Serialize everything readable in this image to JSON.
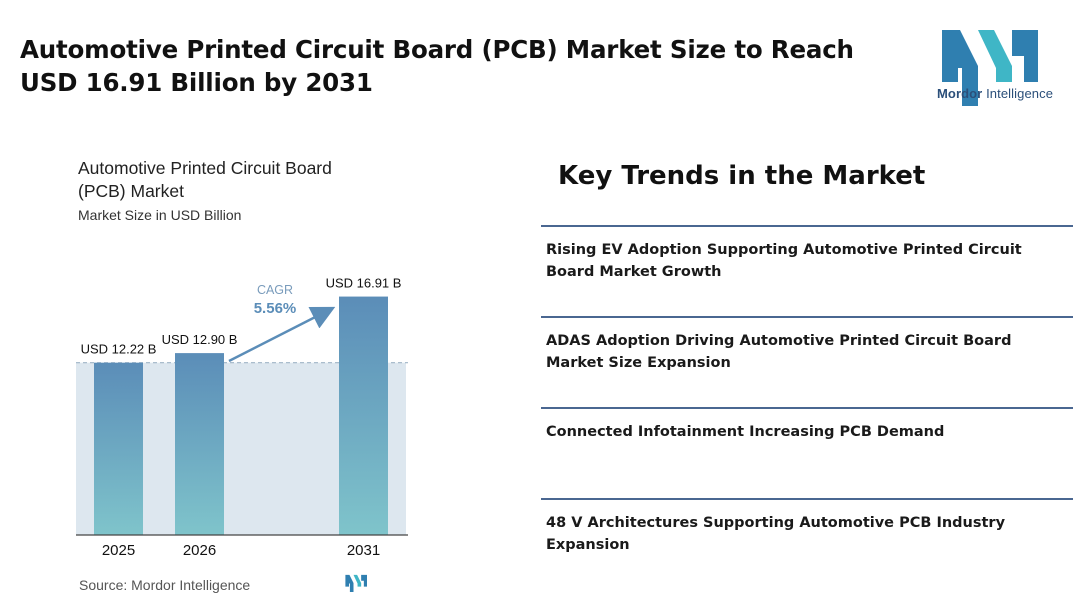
{
  "header": {
    "title": "Automotive Printed Circuit Board (PCB) Market Size to Reach USD 16.91 Billion by 2031",
    "logo_brand": "Mordor",
    "logo_suffix": "Intelligence"
  },
  "chart_data": {
    "type": "bar",
    "title": "Automotive Printed Circuit Board (PCB) Market",
    "subtitle": "Market Size in USD Billion",
    "categories": [
      "2025",
      "2026",
      "2031"
    ],
    "values": [
      12.22,
      12.9,
      16.91
    ],
    "data_labels": [
      "USD 12.22 B",
      "USD 12.90 B",
      "USD 16.91 B"
    ],
    "unit": "USD Billion",
    "cagr_label": "CAGR",
    "cagr_value": "5.56%",
    "grid": false,
    "colors": {
      "bar_top": "#5b8db8",
      "bar_bottom": "#7fc4cb",
      "band": "#dde7ef",
      "arrow": "#5b8db8"
    }
  },
  "source": "Source: Mordor Intelligence",
  "trends": {
    "heading": "Key Trends in the Market",
    "items": [
      "Rising EV Adoption Supporting Automotive Printed Circuit Board Market Growth",
      "ADAS Adoption Driving Automotive Printed Circuit Board Market Size Expansion",
      "Connected Infotainment Increasing PCB Demand",
      "48 V Architectures Supporting Automotive PCB Industry Expansion"
    ]
  }
}
